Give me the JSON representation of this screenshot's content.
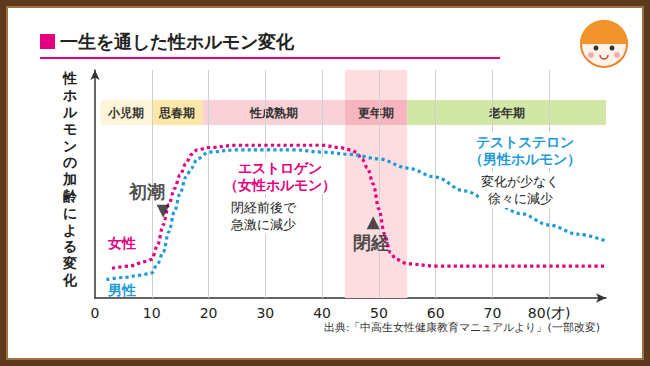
{
  "chart_data": {
    "type": "line",
    "title": "一生を通した性ホルモン変化",
    "y_label": "性ホルモンの加齢による変化",
    "source": "出典:「中高生女性健康教育マニュアルより」(一部改変)",
    "xlim": [
      0,
      90
    ],
    "xticks": [
      0,
      10,
      20,
      30,
      40,
      50,
      60,
      70,
      {
        "value": 80,
        "label": "80(才)"
      }
    ],
    "ylim": [
      0,
      100
    ],
    "yticks": [],
    "tick_labels": "x",
    "grid": true,
    "line_style": "dotted",
    "stages": [
      {
        "label": "小児期",
        "start": 1,
        "end": 10,
        "color": "#fdf5d8"
      },
      {
        "label": "思春期",
        "start": 10,
        "end": 19,
        "color": "#fde7a8"
      },
      {
        "label": "性成熟期",
        "start": 19,
        "end": 44,
        "color": "#f8d0d8"
      },
      {
        "label": "更年期",
        "start": 44,
        "end": 55,
        "color": "#f6b5bf"
      },
      {
        "label": "老年期",
        "start": 55,
        "end": 90,
        "color": "#d2e7a6"
      }
    ],
    "shaded_range": {
      "x": [
        44,
        55
      ],
      "color": "#fcdde0"
    },
    "series": [
      {
        "name": "女性",
        "hormone": "エストロゲン\n（女性ホルモン）",
        "note": "閉経前後で\n急激に減少",
        "color": "#e4007f",
        "x": [
          3,
          6,
          9,
          10,
          11,
          12,
          13,
          14,
          15,
          16,
          17,
          18,
          20,
          25,
          30,
          35,
          40,
          43,
          45,
          46,
          47,
          48,
          49,
          50,
          51,
          52,
          53,
          55,
          60,
          70,
          80,
          90
        ],
        "values": [
          13,
          14,
          16,
          17,
          23,
          32,
          41,
          48,
          54,
          59,
          63,
          65,
          66,
          67,
          67,
          67,
          67,
          66,
          65,
          64,
          61,
          57,
          50,
          39,
          28,
          20,
          17,
          15,
          14,
          14,
          14,
          14
        ]
      },
      {
        "name": "男性",
        "hormone": "テストステロン\n（男性ホルモン）",
        "note": "変化が少なく\n徐々に減少",
        "color": "#1e9bd7",
        "x": [
          2,
          5,
          8,
          10,
          11,
          12,
          13,
          14,
          15,
          16,
          17,
          18,
          20,
          25,
          30,
          35,
          40,
          45,
          50,
          55,
          60,
          65,
          70,
          75,
          80,
          85,
          90
        ],
        "values": [
          8,
          9,
          10,
          11,
          15,
          20,
          29,
          38,
          46,
          53,
          57,
          61,
          64,
          65,
          65,
          65,
          64,
          63,
          61,
          57,
          53,
          47,
          42,
          37,
          32,
          28,
          25
        ]
      }
    ],
    "events": [
      {
        "label": "初潮",
        "x": 12,
        "y": 38,
        "marker": "triangle-down"
      },
      {
        "label": "閉経",
        "x": 49,
        "y": 33,
        "marker": "triangle-up"
      }
    ]
  }
}
